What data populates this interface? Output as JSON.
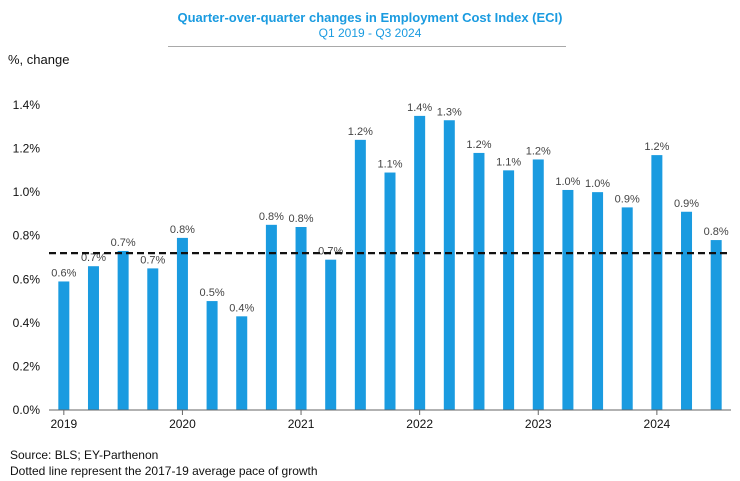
{
  "chart_data": {
    "type": "bar",
    "title": "Quarter-over-quarter changes in Employment Cost Index (ECI)",
    "subtitle": "Q1 2019 - Q3 2024",
    "ylabel": "%, change",
    "ylim": [
      0,
      1.4
    ],
    "yticks": [
      "0.0%",
      "0.2%",
      "0.4%",
      "0.6%",
      "0.8%",
      "1.0%",
      "1.2%",
      "1.4%"
    ],
    "year_labels": [
      "2019",
      "2020",
      "2021",
      "2022",
      "2023",
      "2024"
    ],
    "categories": [
      "Q1 2019",
      "Q2 2019",
      "Q3 2019",
      "Q4 2019",
      "Q1 2020",
      "Q2 2020",
      "Q3 2020",
      "Q4 2020",
      "Q1 2021",
      "Q2 2021",
      "Q3 2021",
      "Q4 2021",
      "Q1 2022",
      "Q2 2022",
      "Q3 2022",
      "Q4 2022",
      "Q1 2023",
      "Q2 2023",
      "Q3 2023",
      "Q4 2023",
      "Q1 2024",
      "Q2 2024",
      "Q3 2024"
    ],
    "values": [
      0.59,
      0.66,
      0.73,
      0.65,
      0.79,
      0.5,
      0.43,
      0.85,
      0.84,
      0.69,
      1.24,
      1.09,
      1.35,
      1.33,
      1.18,
      1.1,
      1.15,
      1.01,
      1.0,
      0.93,
      1.17,
      0.91,
      0.78
    ],
    "data_labels": [
      "0.6%",
      "0.7%",
      "0.7%",
      "0.7%",
      "0.8%",
      "0.5%",
      "0.4%",
      "0.8%",
      "0.8%",
      "0.7%",
      "1.2%",
      "1.1%",
      "1.4%",
      "1.3%",
      "1.2%",
      "1.1%",
      "1.2%",
      "1.0%",
      "1.0%",
      "0.9%",
      "1.2%",
      "0.9%",
      "0.8%"
    ],
    "reference_line": {
      "value": 0.72,
      "style": "dashed",
      "label": "2017-19 average pace of growth"
    },
    "bar_color": "#1a9be0",
    "line_color": "#111111"
  },
  "source": {
    "line1": "Source: BLS; EY-Parthenon",
    "line2": "Dotted line represent the 2017-19 average pace of growth"
  }
}
